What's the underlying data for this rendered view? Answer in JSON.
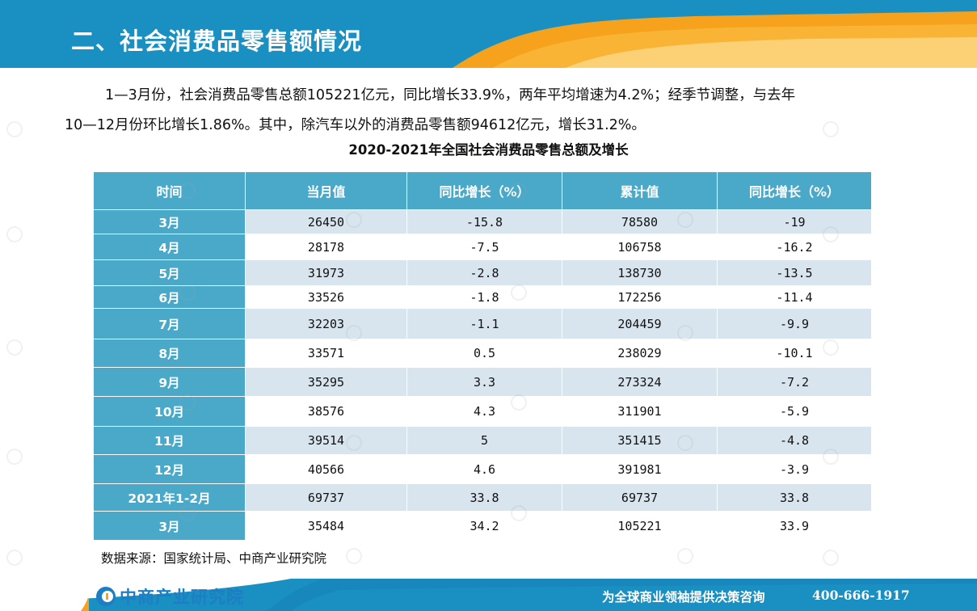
{
  "header": {
    "title": "二、社会消费品零售额情况"
  },
  "intro": {
    "line1": "1—3月份，社会消费品零售总额105221亿元，同比增长33.9%，两年平均增速为4.2%；经季节调整，与去年",
    "line2": "10—12月份环比增长1.86%。其中，除汽车以外的消费品零售额94612亿元，增长31.2%。"
  },
  "table": {
    "title": "2020-2021年全国社会消费品零售总额及增长",
    "columns": [
      "时间",
      "当月值",
      "同比增长（%）",
      "累计值",
      "同比增长（%）"
    ],
    "rows": [
      {
        "period": "3月",
        "monthly": "26450",
        "monthly_yoy": "-15.8",
        "cumulative": "78580",
        "cumulative_yoy": "-19"
      },
      {
        "period": "4月",
        "monthly": "28178",
        "monthly_yoy": "-7.5",
        "cumulative": "106758",
        "cumulative_yoy": "-16.2"
      },
      {
        "period": "5月",
        "monthly": "31973",
        "monthly_yoy": "-2.8",
        "cumulative": "138730",
        "cumulative_yoy": "-13.5"
      },
      {
        "period": "6月",
        "monthly": "33526",
        "monthly_yoy": "-1.8",
        "cumulative": "172256",
        "cumulative_yoy": "-11.4"
      },
      {
        "period": "7月",
        "monthly": "32203",
        "monthly_yoy": "-1.1",
        "cumulative": "204459",
        "cumulative_yoy": "-9.9"
      },
      {
        "period": "8月",
        "monthly": "33571",
        "monthly_yoy": "0.5",
        "cumulative": "238029",
        "cumulative_yoy": "-10.1"
      },
      {
        "period": "9月",
        "monthly": "35295",
        "monthly_yoy": "3.3",
        "cumulative": "273324",
        "cumulative_yoy": "-7.2"
      },
      {
        "period": "10月",
        "monthly": "38576",
        "monthly_yoy": "4.3",
        "cumulative": "311901",
        "cumulative_yoy": "-5.9"
      },
      {
        "period": "11月",
        "monthly": "39514",
        "monthly_yoy": "5",
        "cumulative": "351415",
        "cumulative_yoy": "-4.8"
      },
      {
        "period": "12月",
        "monthly": "40566",
        "monthly_yoy": "4.6",
        "cumulative": "391981",
        "cumulative_yoy": "-3.9"
      },
      {
        "period": "2021年1-2月",
        "monthly": "69737",
        "monthly_yoy": "33.8",
        "cumulative": "69737",
        "cumulative_yoy": "33.8"
      },
      {
        "period": "3月",
        "monthly": "35484",
        "monthly_yoy": "34.2",
        "cumulative": "105221",
        "cumulative_yoy": "33.9"
      }
    ]
  },
  "source": "数据来源：国家统计局、中商产业研究院",
  "footer": {
    "logo_text": "中商产业研究院",
    "slogan": "为全球商业领袖提供决策咨询",
    "phone": "400-666-1917"
  },
  "colors": {
    "header_blue": "#1a8fc2",
    "accent_orange": "#f6a21d",
    "table_header": "#4aa8c9",
    "row_alt": "#d9e5ee"
  },
  "icons": [
    "logo-c-icon"
  ]
}
